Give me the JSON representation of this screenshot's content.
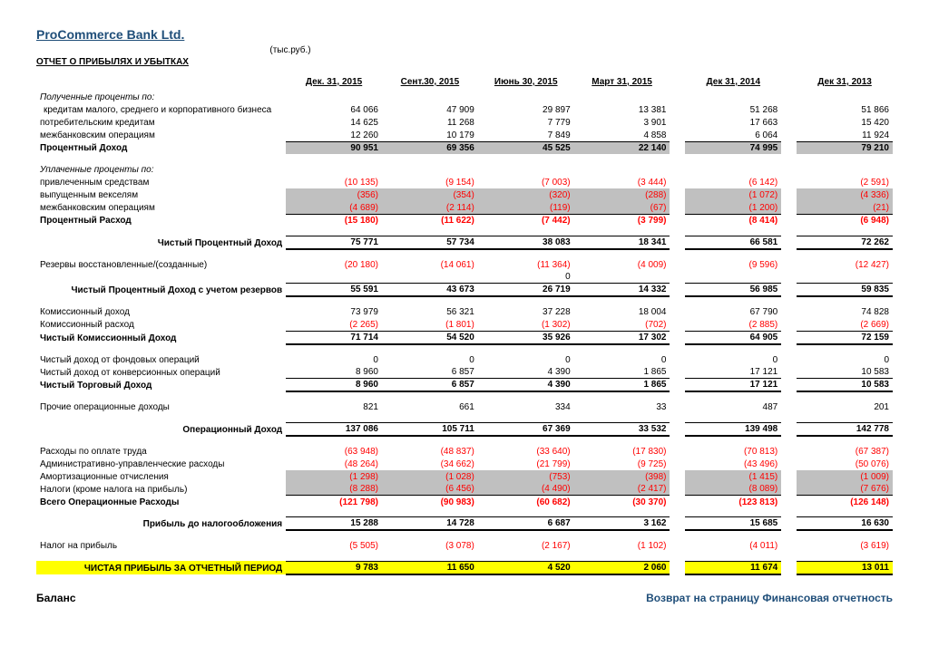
{
  "title": "ProCommerce Bank Ltd.",
  "unit": "(тыс.руб.)",
  "subtitle": "ОТЧЕТ О ПРИБЫЛЯХ И УБЫТКАХ",
  "headers": [
    "Дек. 31, 2015",
    "Сент.30, 2015",
    "Июнь 30, 2015",
    "Март 31, 2015",
    "Дек 31, 2014",
    "Дек 31, 2013"
  ],
  "rows": [
    {
      "label": "Полученные проценты по:",
      "italic": true
    },
    {
      "label": "кредитам малого, среднего и корпоративного бизнеса",
      "indent": true,
      "v": [
        "64 066",
        "47 909",
        "29 897",
        "13 381",
        "51 268",
        "51 866"
      ]
    },
    {
      "label": "потребительским кредитам",
      "v": [
        "14 625",
        "11 268",
        "7 779",
        "3 901",
        "17 663",
        "15 420"
      ]
    },
    {
      "label": "межбанковским операциям",
      "v": [
        "12 260",
        "10 179",
        "7 849",
        "4 858",
        "6 064",
        "11 924"
      ],
      "uline": true
    },
    {
      "label": "Процентный Доход",
      "bold": true,
      "grey": true,
      "v": [
        "90 951",
        "69 356",
        "45 525",
        "22 140",
        "74 995",
        "79 210"
      ]
    },
    {
      "spacer": true
    },
    {
      "label": "Уплаченные проценты по:",
      "italic": true
    },
    {
      "label": "привлеченным средствам",
      "v": [
        "(10 135)",
        "(9 154)",
        "(7 003)",
        "(3 444)",
        "(6 142)",
        "(2 591)"
      ],
      "neg": true
    },
    {
      "label": "выпущенным векселям",
      "grey": true,
      "v": [
        "(356)",
        "(354)",
        "(320)",
        "(288)",
        "(1 072)",
        "(4 336)"
      ],
      "neg": true
    },
    {
      "label": "межбанковским операциям",
      "grey": true,
      "v": [
        "(4 689)",
        "(2 114)",
        "(119)",
        "(67)",
        "(1 200)",
        "(21)"
      ],
      "neg": true,
      "uline": true
    },
    {
      "label": "Процентный Расход",
      "bold": true,
      "v": [
        "(15 180)",
        "(11 622)",
        "(7 442)",
        "(3 799)",
        "(8 414)",
        "(6 948)"
      ],
      "neg": true
    },
    {
      "spacer": true
    },
    {
      "label": "Чистый Процентный Доход",
      "bold": true,
      "right": true,
      "v": [
        "75 771",
        "57 734",
        "38 083",
        "18 341",
        "66 581",
        "72 262"
      ],
      "heavy": true
    },
    {
      "spacer": true
    },
    {
      "label": "Резервы восстановленные/(созданные)",
      "v": [
        "(20 180)",
        "(14 061)",
        "(11 364)",
        "(4 009)",
        "(9 596)",
        "(12 427)"
      ],
      "neg": true
    },
    {
      "label": "",
      "v": [
        "",
        "",
        "0",
        "",
        "",
        ""
      ],
      "uline": true
    },
    {
      "label": "Чистый Процентный Доход с учетом резервов",
      "bold": true,
      "right": true,
      "v": [
        "55 591",
        "43 673",
        "26 719",
        "14 332",
        "56 985",
        "59 835"
      ],
      "heavy": true
    },
    {
      "spacer": true
    },
    {
      "label": "Комиссионный доход",
      "v": [
        "73 979",
        "56 321",
        "37 228",
        "18 004",
        "67 790",
        "74 828"
      ]
    },
    {
      "label": "Комиссионный расход",
      "v": [
        "(2 265)",
        "(1 801)",
        "(1 302)",
        "(702)",
        "(2 885)",
        "(2 669)"
      ],
      "neg": true,
      "uline": true
    },
    {
      "label": "Чистый Комиссионный Доход",
      "bold": true,
      "v": [
        "71 714",
        "54 520",
        "35 926",
        "17 302",
        "64 905",
        "72 159"
      ],
      "heavy": true
    },
    {
      "spacer": true
    },
    {
      "label": "Чистый доход от фондовых операций",
      "v": [
        "0",
        "0",
        "0",
        "0",
        "0",
        "0"
      ]
    },
    {
      "label": "Чистый доход от конверсионных операций",
      "v": [
        "8 960",
        "6 857",
        "4 390",
        "1 865",
        "17 121",
        "10 583"
      ],
      "uline": true
    },
    {
      "label": "Чистый Торговый Доход",
      "bold": true,
      "v": [
        "8 960",
        "6 857",
        "4 390",
        "1 865",
        "17 121",
        "10 583"
      ],
      "heavy": true
    },
    {
      "spacer": true
    },
    {
      "label": "Прочие операционные доходы",
      "v": [
        "821",
        "661",
        "334",
        "33",
        "487",
        "201"
      ]
    },
    {
      "spacer": true
    },
    {
      "label": "Операционный Доход",
      "bold": true,
      "right": true,
      "v": [
        "137 086",
        "105 711",
        "67 369",
        "33 532",
        "139 498",
        "142 778"
      ],
      "heavy": true
    },
    {
      "spacer": true
    },
    {
      "label": "Расходы по оплате труда",
      "v": [
        "(63 948)",
        "(48 837)",
        "(33 640)",
        "(17 830)",
        "(70 813)",
        "(67 387)"
      ],
      "neg": true
    },
    {
      "label": "Административно-управленческие расходы",
      "v": [
        "(48 264)",
        "(34 662)",
        "(21 799)",
        "(9 725)",
        "(43 496)",
        "(50 076)"
      ],
      "neg": true
    },
    {
      "label": "Амортизационные отчисления",
      "grey": true,
      "v": [
        "(1 298)",
        "(1 028)",
        "(753)",
        "(398)",
        "(1 415)",
        "(1 009)"
      ],
      "neg": true
    },
    {
      "label": "Налоги (кроме налога на прибыль)",
      "grey": true,
      "v": [
        "(8 288)",
        "(6 456)",
        "(4 490)",
        "(2 417)",
        "(8 089)",
        "(7 676)"
      ],
      "neg": true,
      "uline": true
    },
    {
      "label": "Всего Операционные Расходы",
      "bold": true,
      "v": [
        "(121 798)",
        "(90 983)",
        "(60 682)",
        "(30 370)",
        "(123 813)",
        "(126 148)"
      ],
      "neg": true
    },
    {
      "spacer": true
    },
    {
      "label": "Прибыль до налогообложения",
      "bold": true,
      "right": true,
      "v": [
        "15 288",
        "14 728",
        "6 687",
        "3 162",
        "15 685",
        "16 630"
      ],
      "heavy": true
    },
    {
      "spacer": true
    },
    {
      "label": "Налог на прибыль",
      "v": [
        "(5 505)",
        "(3 078)",
        "(2 167)",
        "(1 102)",
        "(4 011)",
        "(3 619)"
      ],
      "neg": true
    },
    {
      "spacer": true
    },
    {
      "label": "ЧИСТАЯ ПРИБЫЛЬ ЗА ОТЧЕТНЫЙ ПЕРИОД",
      "bold": true,
      "right": true,
      "yellow": true,
      "v": [
        "9 783",
        "11 650",
        "4 520",
        "2 060",
        "11 674",
        "13 011"
      ],
      "heavy": true
    }
  ],
  "footer_left": "Баланс",
  "footer_right": "Возврат на страницу Финансовая отчетность"
}
